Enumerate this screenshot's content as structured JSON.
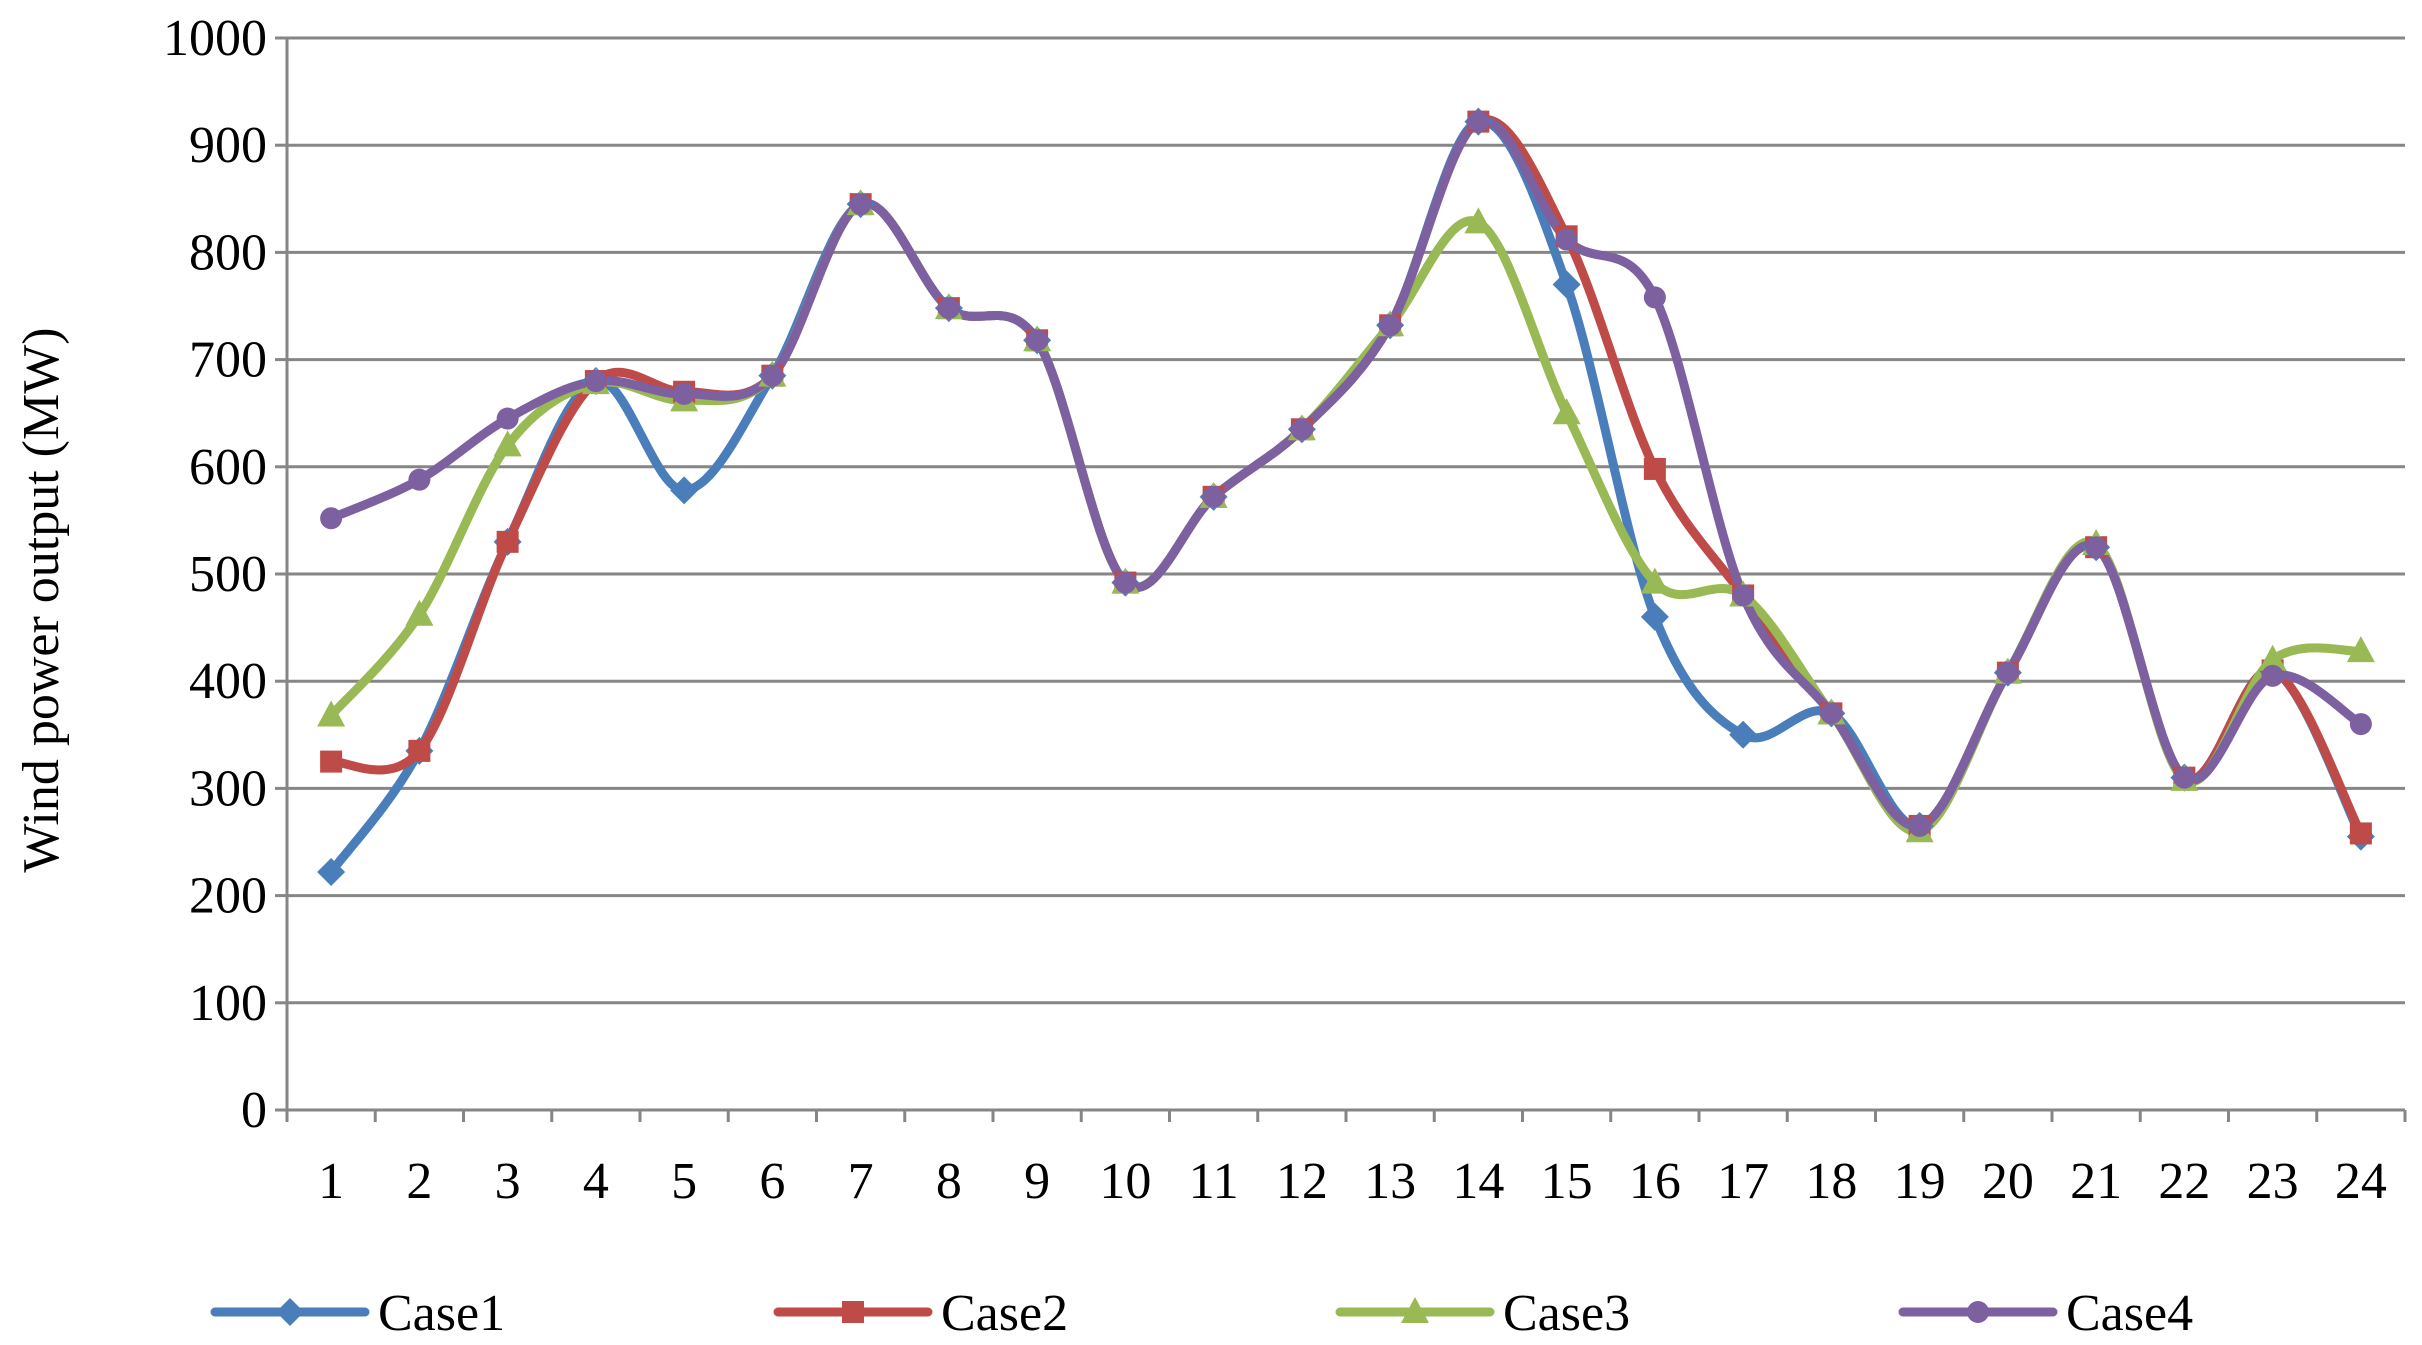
{
  "chart_data": {
    "type": "line",
    "title": "",
    "xlabel": "",
    "ylabel": "Wind power output (MW)",
    "ylim": [
      0,
      1000
    ],
    "yticks": [
      0,
      100,
      200,
      300,
      400,
      500,
      600,
      700,
      800,
      900,
      1000
    ],
    "categories": [
      "1",
      "2",
      "3",
      "4",
      "5",
      "6",
      "7",
      "8",
      "9",
      "10",
      "11",
      "12",
      "13",
      "14",
      "15",
      "16",
      "17",
      "18",
      "19",
      "20",
      "21",
      "22",
      "23",
      "24"
    ],
    "grid": "horizontal",
    "legend_position": "bottom",
    "series": [
      {
        "name": "Case1",
        "color": "#4A7EBB",
        "marker": "diamond",
        "values": [
          222,
          335,
          530,
          680,
          578,
          685,
          845,
          748,
          718,
          492,
          572,
          635,
          732,
          922,
          770,
          460,
          350,
          370,
          265,
          408,
          525,
          310,
          410,
          255
        ]
      },
      {
        "name": "Case2",
        "color": "#BE4B48",
        "marker": "square",
        "values": [
          325,
          335,
          530,
          680,
          670,
          685,
          845,
          748,
          718,
          492,
          572,
          635,
          732,
          922,
          815,
          598,
          480,
          370,
          265,
          408,
          525,
          310,
          410,
          258
        ]
      },
      {
        "name": "Case3",
        "color": "#98B954",
        "marker": "triangle",
        "values": [
          368,
          462,
          620,
          678,
          662,
          685,
          845,
          748,
          718,
          492,
          572,
          635,
          732,
          828,
          650,
          492,
          480,
          370,
          260,
          408,
          528,
          308,
          420,
          428
        ]
      },
      {
        "name": "Case4",
        "color": "#7D60A0",
        "marker": "circle",
        "values": [
          552,
          588,
          645,
          680,
          668,
          685,
          845,
          748,
          718,
          492,
          572,
          635,
          732,
          922,
          812,
          758,
          480,
          370,
          265,
          408,
          525,
          310,
          405,
          360
        ]
      }
    ]
  }
}
